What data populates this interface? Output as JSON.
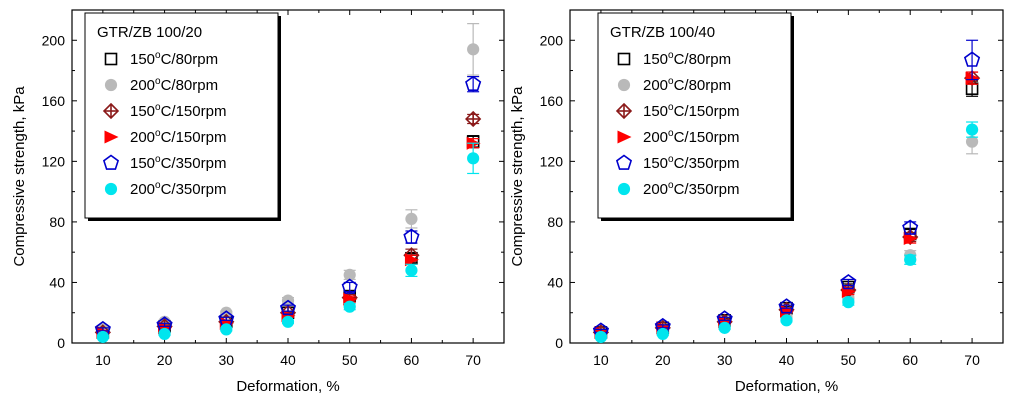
{
  "chart_data": [
    {
      "type": "scatter",
      "title": "",
      "legend_title": "GTR/ZB 100/20",
      "legend_placement": "top-left",
      "xlabel": "Deformation, %",
      "ylabel": "Compressive strength, kPa",
      "xlim": [
        5,
        75
      ],
      "ylim": [
        0,
        220
      ],
      "xticks": [
        10,
        20,
        30,
        40,
        50,
        60,
        70
      ],
      "yticks": [
        0,
        40,
        80,
        120,
        160,
        200
      ],
      "grid": false,
      "x": [
        10,
        20,
        30,
        40,
        50,
        60,
        70
      ],
      "series": [
        {
          "name": "150°C/80rpm",
          "marker": "square-open",
          "color": "#000000",
          "values": [
            7,
            11,
            14,
            20,
            31,
            56,
            133
          ],
          "err": [
            1,
            1,
            1,
            1,
            2,
            3,
            4
          ]
        },
        {
          "name": "200°C/80rpm",
          "marker": "circle-filled",
          "color": "#b9b9b9",
          "values": [
            9,
            14,
            20,
            28,
            45,
            82,
            194
          ],
          "err": [
            1,
            1,
            1,
            2,
            3,
            6,
            17
          ]
        },
        {
          "name": "150°C/150rpm",
          "marker": "diamond-cross",
          "color": "#8b1a1a",
          "values": [
            7,
            11,
            14,
            20,
            30,
            58,
            148
          ],
          "err": [
            1,
            1,
            1,
            1,
            2,
            4,
            3
          ]
        },
        {
          "name": "200°C/150rpm",
          "marker": "triangle-right",
          "color": "#ff0000",
          "values": [
            7,
            10,
            13,
            18,
            29,
            55,
            132
          ],
          "err": [
            1,
            1,
            1,
            1,
            2,
            3,
            3
          ]
        },
        {
          "name": "150°C/350rpm",
          "marker": "pentagon-open",
          "color": "#0000cd",
          "values": [
            9,
            12,
            16,
            23,
            37,
            70,
            171
          ],
          "err": [
            1,
            1,
            1,
            2,
            3,
            4,
            5
          ]
        },
        {
          "name": "200°C/350rpm",
          "marker": "circle-filled",
          "color": "#00e5ee",
          "values": [
            4,
            6,
            9,
            14,
            24,
            48,
            122
          ],
          "err": [
            1,
            1,
            1,
            1,
            2,
            4,
            10
          ]
        }
      ]
    },
    {
      "type": "scatter",
      "title": "",
      "legend_title": "GTR/ZB 100/40",
      "legend_placement": "top-left",
      "xlabel": "Deformation, %",
      "ylabel": "Compressive strength, kPa",
      "xlim": [
        5,
        75
      ],
      "ylim": [
        0,
        220
      ],
      "xticks": [
        10,
        20,
        30,
        40,
        50,
        60,
        70
      ],
      "yticks": [
        0,
        40,
        80,
        120,
        160,
        200
      ],
      "grid": false,
      "x": [
        10,
        20,
        30,
        40,
        50,
        60,
        70
      ],
      "series": [
        {
          "name": "150°C/80rpm",
          "marker": "square-open",
          "color": "#000000",
          "values": [
            7,
            10,
            15,
            23,
            37,
            72,
            168
          ],
          "err": [
            1,
            1,
            1,
            1,
            2,
            3,
            5
          ]
        },
        {
          "name": "200°C/80rpm",
          "marker": "circle-filled",
          "color": "#b9b9b9",
          "values": [
            6,
            9,
            12,
            17,
            30,
            58,
            133
          ],
          "err": [
            1,
            1,
            1,
            1,
            2,
            3,
            8
          ]
        },
        {
          "name": "150°C/150rpm",
          "marker": "diamond-cross",
          "color": "#8b1a1a",
          "values": [
            7,
            10,
            14,
            22,
            35,
            70,
            175
          ],
          "err": [
            1,
            1,
            1,
            1,
            2,
            3,
            4
          ]
        },
        {
          "name": "200°C/150rpm",
          "marker": "triangle-right",
          "color": "#ff0000",
          "values": [
            7,
            10,
            14,
            21,
            34,
            69,
            175
          ],
          "err": [
            1,
            1,
            1,
            1,
            2,
            3,
            4
          ]
        },
        {
          "name": "150°C/350rpm",
          "marker": "pentagon-open",
          "color": "#0000cd",
          "values": [
            8,
            11,
            16,
            24,
            40,
            76,
            187
          ],
          "err": [
            1,
            1,
            1,
            1,
            2,
            4,
            13
          ]
        },
        {
          "name": "200°C/350rpm",
          "marker": "circle-filled",
          "color": "#00e5ee",
          "values": [
            4,
            6,
            10,
            15,
            27,
            55,
            141
          ],
          "err": [
            1,
            1,
            1,
            1,
            2,
            3,
            5
          ]
        }
      ]
    }
  ]
}
